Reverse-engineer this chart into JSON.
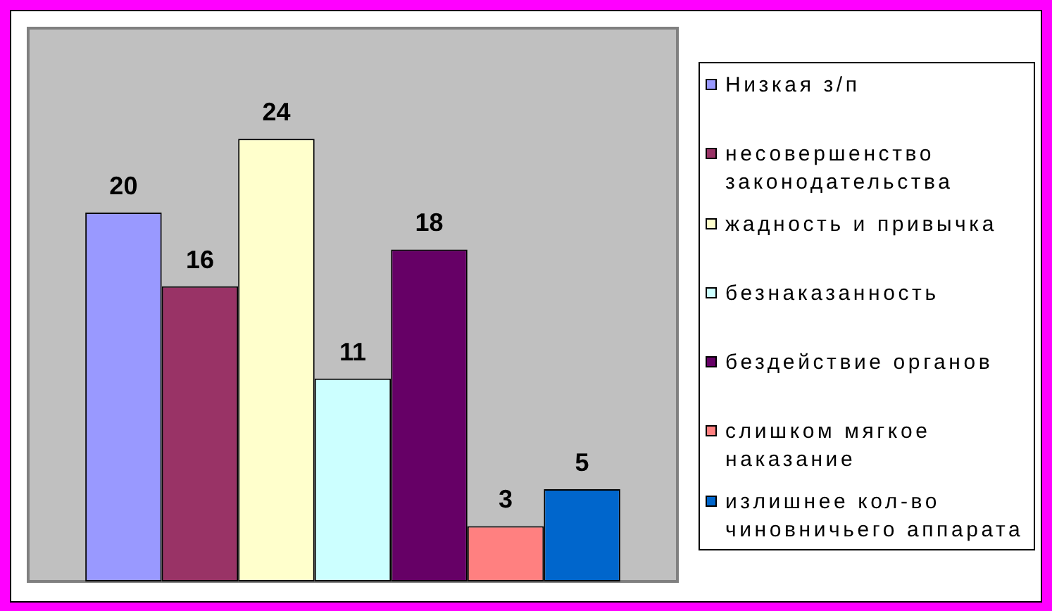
{
  "chart_data": {
    "type": "bar",
    "categories": [
      null
    ],
    "series": [
      {
        "name": "Низкая з/п",
        "color": "#9999ff",
        "values": [
          20
        ]
      },
      {
        "name": "несовершенство законодательства",
        "color": "#993366",
        "values": [
          16
        ]
      },
      {
        "name": "жадность и привычка",
        "color": "#ffffcc",
        "values": [
          24
        ]
      },
      {
        "name": "безнаказанность",
        "color": "#ccffff",
        "values": [
          11
        ]
      },
      {
        "name": "бездействие органов",
        "color": "#660066",
        "values": [
          18
        ]
      },
      {
        "name": "слишком мягкое наказание",
        "color": "#ff8080",
        "values": [
          3
        ]
      },
      {
        "name": "излишнее кол-во чиновничьего аппарата",
        "color": "#0066cc",
        "values": [
          5
        ]
      }
    ],
    "ylim": [
      0,
      30
    ],
    "data_labels": true,
    "legend": "right",
    "tick_labels": false
  }
}
